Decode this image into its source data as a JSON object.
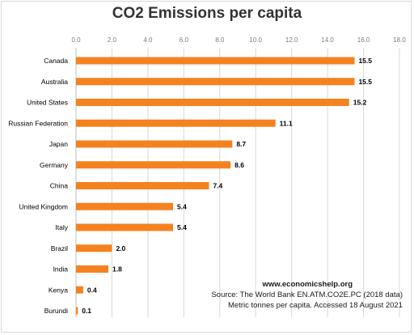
{
  "chart_data": {
    "type": "bar",
    "orientation": "horizontal",
    "title": "CO2 Emissions per capita",
    "categories": [
      "Canada",
      "Australia",
      "United States",
      "Russian Federation",
      "Japan",
      "Germany",
      "China",
      "United Kingdom",
      "Italy",
      "Brazil",
      "India",
      "Kenya",
      "Burundi"
    ],
    "values": [
      15.5,
      15.5,
      15.2,
      11.1,
      8.7,
      8.6,
      7.4,
      5.4,
      5.4,
      2.0,
      1.8,
      0.4,
      0.1
    ],
    "data_labels": [
      "15.5",
      "15.5",
      "15.2",
      "11.1",
      "8.7",
      "8.6",
      "7.4",
      "5.4",
      "5.4",
      "2.0",
      "1.8",
      "0.4",
      "0.1"
    ],
    "x_ticks": [
      "0.0",
      "2.0",
      "4.0",
      "6.0",
      "8.0",
      "10.0",
      "12.0",
      "14.0",
      "16.0",
      "18.0"
    ],
    "xlim": [
      0,
      18
    ],
    "x_axis_position": "top",
    "grid": true,
    "legend": "none",
    "bar_color": "#f58220",
    "grid_color": "#d9d9d9"
  },
  "notes": {
    "website": "www.economicshelp.org",
    "source": "Source: The World Bank EN.ATM.CO2E.PC (2018 data)",
    "units": "Metric tonnes per capita. Accessed 18 August 2021"
  }
}
